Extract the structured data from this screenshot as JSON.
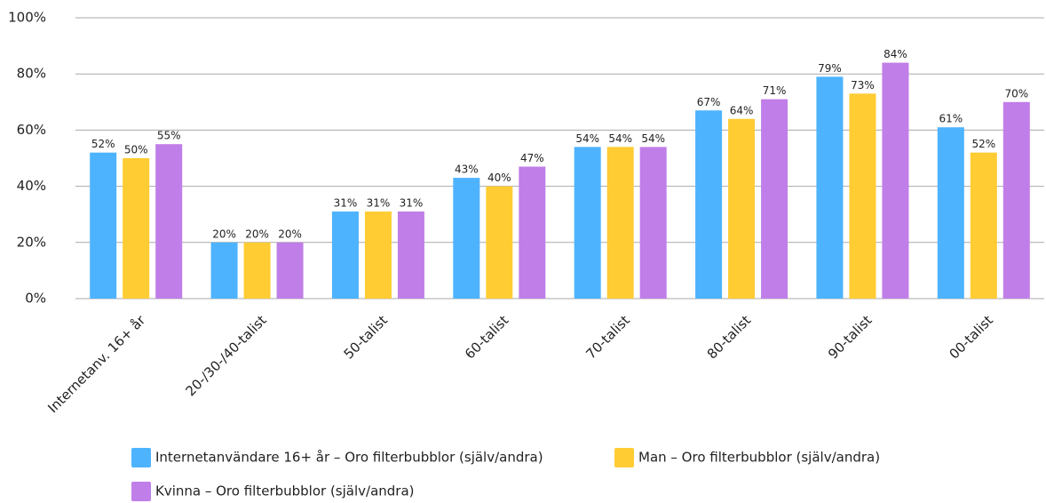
{
  "chart_data": {
    "type": "bar",
    "categories": [
      "Internetanv. 16+ år",
      "20-/30-/40-talist",
      "50-talist",
      "60-talist",
      "70-talist",
      "80-talist",
      "90-talist",
      "00-talist"
    ],
    "series": [
      {
        "name": "Internetanvändare 16+ år – Oro filterbubblor (själv/andra)",
        "color": "#4db3ff",
        "values": [
          52,
          20,
          31,
          43,
          54,
          67,
          79,
          61
        ],
        "value_labels": [
          "52%",
          "20%",
          "31%",
          "43%",
          "54%",
          "67%",
          "79%",
          "61%"
        ]
      },
      {
        "name": "Man – Oro filterbubblor (själv/andra)",
        "color": "#ffcc33",
        "values": [
          50,
          20,
          31,
          40,
          54,
          64,
          73,
          52
        ],
        "value_labels": [
          "50%",
          "20%",
          "31%",
          "40%",
          "54%",
          "64%",
          "73%",
          "52%"
        ]
      },
      {
        "name": "Kvinna – Oro filterbubblor (själv/andra)",
        "color": "#c07ee8",
        "values": [
          55,
          20,
          31,
          47,
          54,
          71,
          84,
          70
        ],
        "value_labels": [
          "55%",
          "20%",
          "31%",
          "47%",
          "54%",
          "71%",
          "84%",
          "70%"
        ]
      }
    ],
    "ylim": [
      0,
      100
    ],
    "yticks": [
      {
        "value": 0,
        "label": "0%"
      },
      {
        "value": 20,
        "label": "20%"
      },
      {
        "value": 40,
        "label": "40%"
      },
      {
        "value": 60,
        "label": "60%"
      },
      {
        "value": 80,
        "label": "80%"
      },
      {
        "value": 100,
        "label": "100%"
      }
    ],
    "grid": true
  }
}
